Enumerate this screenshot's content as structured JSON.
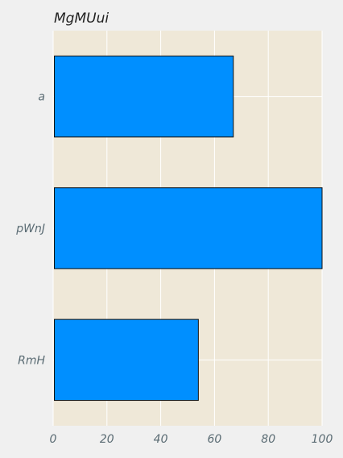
{
  "chart_data": {
    "type": "bar",
    "orientation": "horizontal",
    "title": "MgMUui",
    "categories": [
      "a",
      "pWnJ",
      "RmH"
    ],
    "values": [
      67,
      100,
      54
    ],
    "xlabel": "",
    "ylabel": "",
    "xlim": [
      0,
      100
    ],
    "xticks": [
      "0",
      "20",
      "40",
      "60",
      "80",
      "100"
    ],
    "xtick_values": [
      0,
      20,
      40,
      60,
      80,
      100
    ],
    "grid": true,
    "colors": {
      "bar": "#008fff",
      "bar_edge": "#111111",
      "plot_background": "#efe8d8",
      "figure_background": "#f0f0f0",
      "grid": "#ffffff"
    }
  }
}
